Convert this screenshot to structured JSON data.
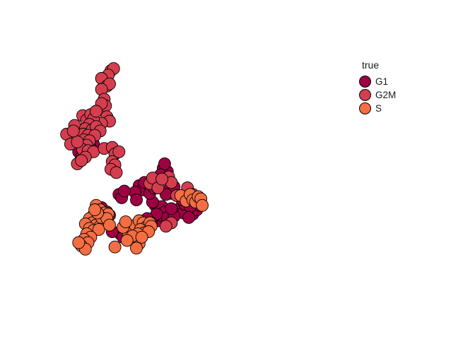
{
  "chart_data": {
    "type": "scatter",
    "title": "",
    "xlabel": "",
    "ylabel": "",
    "axes_visible": false,
    "grid": false,
    "legend_title": "true",
    "legend_position": "right",
    "xlim": [
      0,
      100
    ],
    "ylim": [
      0,
      100
    ],
    "series": [
      {
        "name": "G1",
        "color": "#9E0142",
        "points": [
          [
            13.0,
            67.0
          ],
          [
            14.5,
            65.5
          ],
          [
            14.0,
            63.0
          ],
          [
            13.5,
            56.5
          ],
          [
            14.5,
            54.0
          ],
          [
            16.0,
            57.0
          ],
          [
            18.5,
            62.0
          ],
          [
            19.0,
            60.0
          ],
          [
            18.0,
            58.0
          ],
          [
            45.0,
            49.0
          ],
          [
            46.5,
            47.5
          ],
          [
            45.5,
            51.0
          ],
          [
            44.0,
            46.0
          ],
          [
            36.0,
            41.0
          ],
          [
            37.0,
            39.0
          ],
          [
            34.5,
            38.0
          ],
          [
            38.0,
            42.5
          ],
          [
            47.0,
            39.0
          ],
          [
            48.0,
            37.5
          ],
          [
            49.0,
            40.5
          ],
          [
            46.0,
            37.0
          ],
          [
            42.0,
            32.0
          ],
          [
            43.5,
            30.5
          ],
          [
            44.5,
            31.5
          ],
          [
            41.0,
            33.5
          ],
          [
            43.0,
            25.0
          ],
          [
            44.0,
            27.5
          ],
          [
            45.5,
            29.0
          ],
          [
            46.5,
            26.5
          ],
          [
            42.5,
            28.0
          ],
          [
            50.5,
            29.0
          ],
          [
            51.5,
            31.0
          ],
          [
            52.5,
            28.5
          ],
          [
            49.0,
            27.0
          ],
          [
            48.0,
            30.5
          ],
          [
            53.0,
            32.5
          ],
          [
            54.0,
            35.0
          ],
          [
            55.5,
            33.5
          ],
          [
            52.0,
            34.5
          ],
          [
            56.0,
            28.0
          ],
          [
            57.5,
            30.0
          ],
          [
            58.5,
            32.0
          ],
          [
            55.0,
            31.5
          ],
          [
            54.5,
            26.5
          ],
          [
            39.0,
            26.0
          ],
          [
            40.5,
            24.0
          ],
          [
            38.0,
            23.5
          ],
          [
            22.0,
            31.0
          ],
          [
            24.0,
            29.0
          ],
          [
            23.0,
            27.0
          ],
          [
            25.0,
            27.5
          ],
          [
            29.0,
            19.0
          ],
          [
            30.0,
            17.5
          ],
          [
            26.0,
            20.0
          ],
          [
            28.5,
            37.0
          ],
          [
            29.5,
            35.5
          ],
          [
            30.5,
            38.5
          ],
          [
            40.0,
            37.5
          ],
          [
            41.5,
            40.0
          ],
          [
            35.0,
            34.5
          ]
        ]
      },
      {
        "name": "G2M",
        "color": "#D53E4F",
        "points": [
          [
            25.5,
            93.5
          ],
          [
            26.5,
            94.5
          ],
          [
            24.5,
            91.5
          ],
          [
            22.0,
            90.0
          ],
          [
            24.0,
            86.5
          ],
          [
            25.0,
            87.5
          ],
          [
            22.0,
            85.0
          ],
          [
            23.0,
            80.5
          ],
          [
            23.5,
            77.5
          ],
          [
            22.0,
            78.5
          ],
          [
            24.0,
            72.5
          ],
          [
            25.0,
            70.5
          ],
          [
            22.0,
            69.5
          ],
          [
            15.0,
            73.0
          ],
          [
            16.5,
            71.0
          ],
          [
            18.0,
            73.5
          ],
          [
            19.0,
            71.5
          ],
          [
            17.5,
            69.0
          ],
          [
            12.0,
            68.5
          ],
          [
            16.0,
            67.0
          ],
          [
            18.5,
            66.5
          ],
          [
            20.0,
            68.0
          ],
          [
            21.5,
            66.0
          ],
          [
            13.5,
            63.5
          ],
          [
            15.0,
            64.5
          ],
          [
            17.0,
            64.0
          ],
          [
            19.5,
            64.0
          ],
          [
            14.0,
            60.5
          ],
          [
            15.5,
            62.0
          ],
          [
            17.5,
            61.5
          ],
          [
            16.5,
            59.5
          ],
          [
            15.0,
            57.5
          ],
          [
            17.0,
            57.0
          ],
          [
            19.0,
            56.5
          ],
          [
            16.0,
            54.0
          ],
          [
            9.0,
            64.5
          ],
          [
            10.5,
            60.0
          ],
          [
            13.0,
            61.0
          ],
          [
            11.5,
            66.0
          ],
          [
            13.0,
            51.0
          ],
          [
            14.5,
            52.5
          ],
          [
            23.0,
            58.0
          ],
          [
            26.0,
            58.5
          ],
          [
            27.0,
            55.5
          ],
          [
            28.5,
            56.5
          ],
          [
            26.0,
            52.0
          ],
          [
            27.0,
            50.5
          ],
          [
            25.5,
            48.5
          ],
          [
            27.5,
            47.0
          ],
          [
            47.0,
            45.0
          ],
          [
            48.0,
            42.5
          ],
          [
            40.0,
            42.0
          ],
          [
            41.0,
            44.5
          ],
          [
            48.0,
            24.0
          ],
          [
            46.0,
            22.5
          ],
          [
            50.0,
            36.5
          ],
          [
            54.0,
            40.0
          ],
          [
            56.0,
            37.0
          ],
          [
            43.0,
            40.0
          ],
          [
            44.5,
            44.0
          ],
          [
            20.0,
            75.0
          ]
        ]
      },
      {
        "name": "S",
        "color": "#F46D43",
        "points": [
          [
            20.0,
            32.0
          ],
          [
            21.5,
            30.0
          ],
          [
            23.0,
            28.5
          ],
          [
            24.5,
            28.0
          ],
          [
            19.0,
            27.5
          ],
          [
            20.5,
            26.0
          ],
          [
            22.0,
            25.5
          ],
          [
            23.5,
            24.5
          ],
          [
            17.5,
            26.0
          ],
          [
            18.5,
            24.0
          ],
          [
            20.0,
            23.0
          ],
          [
            21.5,
            22.5
          ],
          [
            16.0,
            23.5
          ],
          [
            17.5,
            21.5
          ],
          [
            19.0,
            20.5
          ],
          [
            21.0,
            21.0
          ],
          [
            16.5,
            19.0
          ],
          [
            18.0,
            17.5
          ],
          [
            15.5,
            16.5
          ],
          [
            17.0,
            15.0
          ],
          [
            14.5,
            13.5
          ],
          [
            16.0,
            12.0
          ],
          [
            13.5,
            15.0
          ],
          [
            22.0,
            26.5
          ],
          [
            24.0,
            26.0
          ],
          [
            25.0,
            23.0
          ],
          [
            20.5,
            28.5
          ],
          [
            19.5,
            30.0
          ],
          [
            34.0,
            16.0
          ],
          [
            36.0,
            14.5
          ],
          [
            35.0,
            12.5
          ],
          [
            31.5,
            20.5
          ],
          [
            33.0,
            22.0
          ],
          [
            34.5,
            23.0
          ],
          [
            36.0,
            25.0
          ],
          [
            37.5,
            24.0
          ],
          [
            38.5,
            22.0
          ],
          [
            40.0,
            24.0
          ],
          [
            36.5,
            21.0
          ],
          [
            38.0,
            19.5
          ],
          [
            35.5,
            19.0
          ],
          [
            40.5,
            22.5
          ],
          [
            39.5,
            20.0
          ],
          [
            33.5,
            18.0
          ],
          [
            37.0,
            17.5
          ],
          [
            30.0,
            22.0
          ],
          [
            31.0,
            24.5
          ],
          [
            27.0,
            13.0
          ],
          [
            31.5,
            16.0
          ],
          [
            51.5,
            36.5
          ],
          [
            53.5,
            34.0
          ],
          [
            55.0,
            37.0
          ],
          [
            56.0,
            34.5
          ],
          [
            57.0,
            33.5
          ],
          [
            58.0,
            36.0
          ],
          [
            59.0,
            35.0
          ],
          [
            59.5,
            32.0
          ]
        ]
      }
    ]
  }
}
